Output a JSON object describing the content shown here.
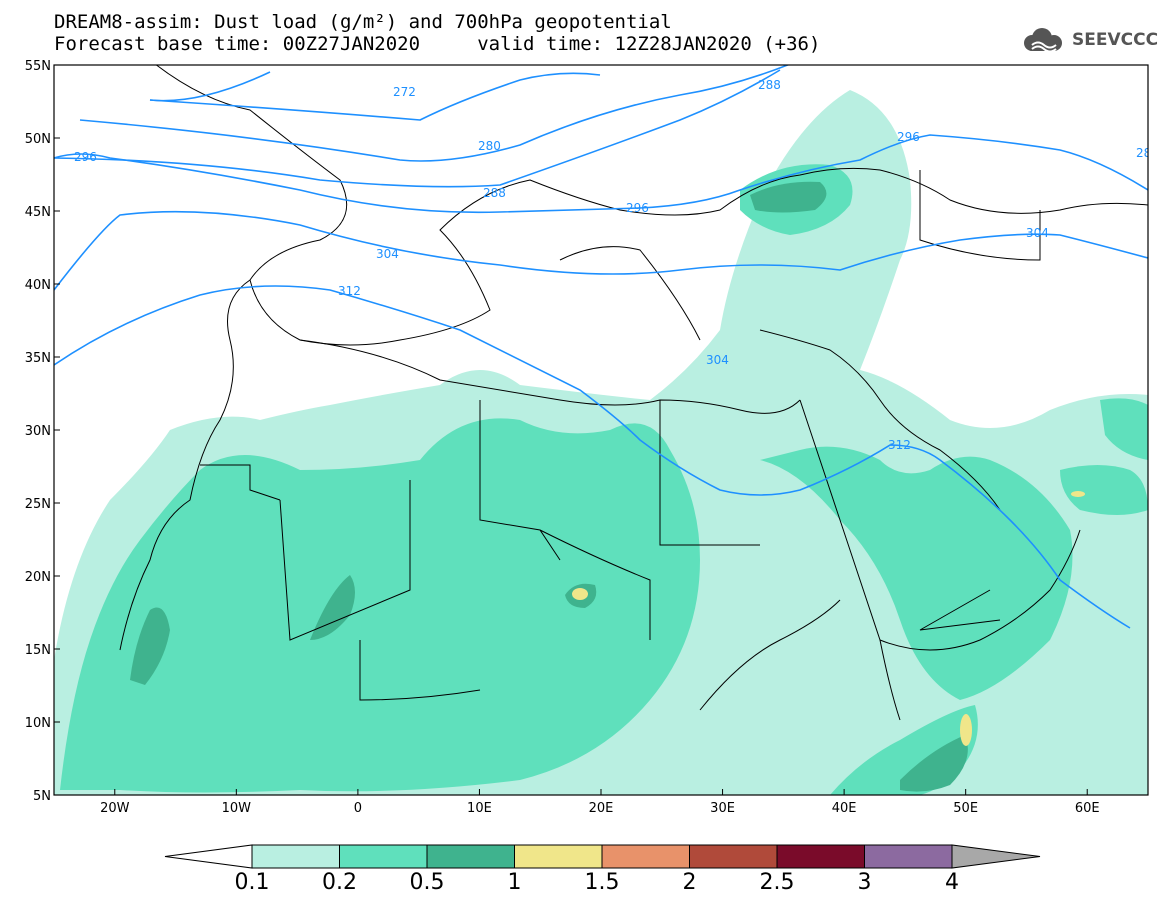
{
  "header": {
    "title_line1": "DREAM8-assim: Dust load (g/m²) and 700hPa geopotential",
    "title_line2": "Forecast base time: 00Z27JAN2020     valid time: 12Z28JAN2020 (+36)",
    "logo_text": "SEEVCCC"
  },
  "map": {
    "lat_labels": [
      "55N",
      "50N",
      "45N",
      "40N",
      "35N",
      "30N",
      "25N",
      "20N",
      "15N",
      "10N",
      "5N"
    ],
    "lon_labels": [
      "20W",
      "10W",
      "0",
      "10E",
      "20E",
      "30E",
      "40E",
      "50E",
      "60E"
    ],
    "lat_range": [
      5,
      55
    ],
    "lon_range": [
      -25,
      65
    ],
    "contour_labels": [
      "272",
      "280",
      "288",
      "288",
      "296",
      "296",
      "296",
      "304",
      "304",
      "304",
      "312",
      "312",
      "28"
    ]
  },
  "colorbar": {
    "labels": [
      "0.1",
      "0.2",
      "0.5",
      "1",
      "1.5",
      "2",
      "2.5",
      "3",
      "4"
    ],
    "colors": [
      "#ffffff",
      "#b9efe1",
      "#5fe0bc",
      "#3fb38e",
      "#f0e68a",
      "#e8926a",
      "#b04a3a",
      "#7a0b2a",
      "#8c6aa0",
      "#a8a8a8"
    ]
  },
  "colors": {
    "contour_line": "#1e90ff",
    "border_line": "#000000"
  }
}
